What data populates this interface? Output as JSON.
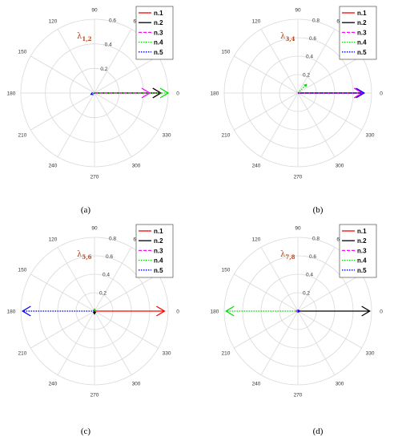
{
  "chart_data": [
    {
      "type": "polar",
      "panel": "a",
      "caption": "(a)",
      "lambda_label": {
        "symbol": "λ",
        "sub": "1,2"
      },
      "r_ticks": [
        "0.2",
        "0.4",
        "0.6"
      ],
      "rmax": 0.6,
      "theta_ticks": [
        "0",
        "30",
        "60",
        "90",
        "120",
        "150",
        "180",
        "210",
        "240",
        "270",
        "300",
        "330"
      ],
      "legend": [
        "n.1",
        "n.2",
        "n.3",
        "n.4",
        "n.5"
      ],
      "series": [
        {
          "name": "n.1",
          "angle": 0,
          "magnitude": 0.54
        },
        {
          "name": "n.2",
          "angle": 0,
          "magnitude": 0.54
        },
        {
          "name": "n.3",
          "angle": 0,
          "magnitude": 0.45
        },
        {
          "name": "n.4",
          "angle": 0,
          "magnitude": 0.6
        },
        {
          "name": "n.5",
          "angle": 200,
          "magnitude": 0.03
        }
      ]
    },
    {
      "type": "polar",
      "panel": "b",
      "caption": "(b)",
      "lambda_label": {
        "symbol": "λ",
        "sub": "3,4"
      },
      "r_ticks": [
        "0.2",
        "0.4",
        "0.6",
        "0.8"
      ],
      "rmax": 0.8,
      "theta_ticks": [
        "0",
        "30",
        "60",
        "90",
        "120",
        "150",
        "180",
        "210",
        "240",
        "270",
        "300",
        "330"
      ],
      "legend": [
        "n.1",
        "n.2",
        "n.3",
        "n.4",
        "n.5"
      ],
      "series": [
        {
          "name": "n.1",
          "angle": 0,
          "magnitude": 0.7
        },
        {
          "name": "n.2",
          "angle": 0,
          "magnitude": 0.7
        },
        {
          "name": "n.3",
          "angle": 0,
          "magnitude": 0.7
        },
        {
          "name": "n.4",
          "angle": 45,
          "magnitude": 0.13
        },
        {
          "name": "n.5",
          "angle": 0,
          "magnitude": 0.72
        }
      ]
    },
    {
      "type": "polar",
      "panel": "c",
      "caption": "(c)",
      "lambda_label": {
        "symbol": "λ",
        "sub": "5,6"
      },
      "r_ticks": [
        "0.2",
        "0.4",
        "0.6",
        "0.8"
      ],
      "rmax": 0.8,
      "theta_ticks": [
        "0",
        "30",
        "60",
        "90",
        "120",
        "150",
        "180",
        "210",
        "240",
        "270",
        "300",
        "330"
      ],
      "legend": [
        "n.1",
        "n.2",
        "n.3",
        "n.4",
        "n.5"
      ],
      "series": [
        {
          "name": "n.1",
          "angle": 0,
          "magnitude": 0.76
        },
        {
          "name": "n.2",
          "angle": 270,
          "magnitude": 0.03
        },
        {
          "name": "n.3",
          "angle": 90,
          "magnitude": 0.02
        },
        {
          "name": "n.4",
          "angle": 90,
          "magnitude": 0.02
        },
        {
          "name": "n.5",
          "angle": 180,
          "magnitude": 0.78
        }
      ]
    },
    {
      "type": "polar",
      "panel": "d",
      "caption": "(d)",
      "lambda_label": {
        "symbol": "λ",
        "sub": "7,8"
      },
      "r_ticks": [
        "0.2",
        "0.4",
        "0.6",
        "0.8"
      ],
      "rmax": 0.8,
      "theta_ticks": [
        "0",
        "30",
        "60",
        "90",
        "120",
        "150",
        "180",
        "210",
        "240",
        "270",
        "300",
        "330"
      ],
      "legend": [
        "n.1",
        "n.2",
        "n.3",
        "n.4",
        "n.5"
      ],
      "series": [
        {
          "name": "n.1",
          "angle": 0,
          "magnitude": 0.02
        },
        {
          "name": "n.2",
          "angle": 0,
          "magnitude": 0.78
        },
        {
          "name": "n.3",
          "angle": 180,
          "magnitude": 0.02
        },
        {
          "name": "n.4",
          "angle": 180,
          "magnitude": 0.78
        },
        {
          "name": "n.5",
          "angle": 0,
          "magnitude": 0.02
        }
      ]
    }
  ],
  "styles": {
    "n.1": {
      "color": "#ff0000",
      "dash": ""
    },
    "n.2": {
      "color": "#000000",
      "dash": ""
    },
    "n.3": {
      "color": "#ff00ff",
      "dash": "4,2"
    },
    "n.4": {
      "color": "#00dd00",
      "dash": "1.5,1.5"
    },
    "n.5": {
      "color": "#0000ff",
      "dash": "1.5,1.5"
    },
    "grid": "#d9d9d9",
    "tick_text": "#333333",
    "lambda_color": "#b5451b"
  }
}
